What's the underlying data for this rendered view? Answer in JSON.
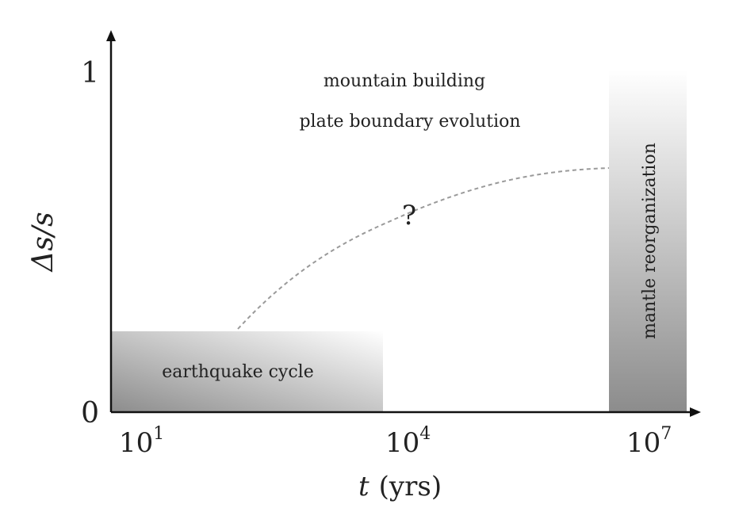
{
  "axes": {
    "y": {
      "symbol": "Δs/s",
      "ticks": [
        "0",
        "1"
      ]
    },
    "x": {
      "symbol": "t",
      "unit": "(yrs)",
      "ticks": [
        {
          "base": "10",
          "exp": "1"
        },
        {
          "base": "10",
          "exp": "4"
        },
        {
          "base": "10",
          "exp": "7"
        }
      ]
    }
  },
  "regions": {
    "earthquake_cycle": "earthquake cycle",
    "mantle_reorganization": "mantle reorganization"
  },
  "annotations": {
    "mountain_building": "mountain building",
    "plate_boundary_evolution": "plate boundary evolution",
    "unknown_marker": "?"
  },
  "colors": {
    "axis": "#111111",
    "shade_dark": "#8c8c8c",
    "shade_light": "#ffffff",
    "dashed_curve": "#9a9a9a"
  }
}
